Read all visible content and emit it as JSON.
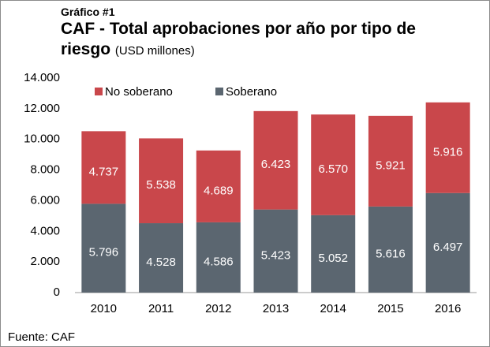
{
  "chart_data": {
    "type": "stacked_bar",
    "kicker": "Gráfico #1",
    "title": "CAF - Total aprobaciones por año por tipo de riesgo",
    "subtitle": "(USD millones)",
    "source": "Fuente: CAF",
    "categories": [
      "2010",
      "2011",
      "2012",
      "2013",
      "2014",
      "2015",
      "2016"
    ],
    "series": [
      {
        "name": "Soberano",
        "color": "#5b6670",
        "values": [
          5796,
          4528,
          4586,
          5423,
          5052,
          5616,
          6497
        ],
        "value_labels": [
          "5.796",
          "4.528",
          "4.586",
          "5.423",
          "5.052",
          "5.616",
          "6.497"
        ]
      },
      {
        "name": "No soberano",
        "color": "#c9474b",
        "values": [
          4737,
          5538,
          4689,
          6423,
          6570,
          5921,
          5916
        ],
        "value_labels": [
          "4.737",
          "5.538",
          "4.689",
          "6.423",
          "6.570",
          "5.921",
          "5.916"
        ]
      }
    ],
    "ylim": [
      0,
      14000
    ],
    "yticks": [
      0,
      {
        "value": 2000,
        "label": "2.000"
      },
      {
        "value": 4000,
        "label": "4.000"
      },
      {
        "value": 6000,
        "label": "6.000"
      },
      {
        "value": 8000,
        "label": "8.000"
      },
      {
        "value": 10000,
        "label": "10.000"
      },
      {
        "value": 12000,
        "label": "12.000"
      },
      {
        "value": 14000,
        "label": "14.000"
      }
    ],
    "legend": "top-left"
  }
}
